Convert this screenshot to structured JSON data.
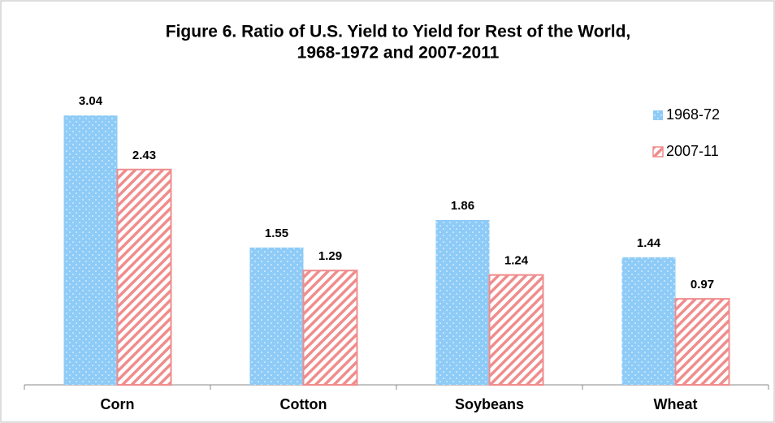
{
  "chart_data": {
    "type": "bar",
    "title": [
      "Figure 6.  Ratio of U.S. Yield to Yield for Rest of the World,",
      "1968-1972 and 2007-2011"
    ],
    "categories": [
      "Corn",
      "Cotton",
      "Soybeans",
      "Wheat"
    ],
    "series": [
      {
        "name": "1968-72",
        "color": "#8ecbf7",
        "pattern": "dots",
        "values": [
          3.04,
          1.55,
          1.86,
          1.44
        ]
      },
      {
        "name": "2007-11",
        "color": "#f08c8c",
        "pattern": "hatch",
        "values": [
          2.43,
          1.29,
          1.24,
          0.97
        ]
      }
    ],
    "ylim": [
      0,
      3.5
    ],
    "legend": "right"
  }
}
